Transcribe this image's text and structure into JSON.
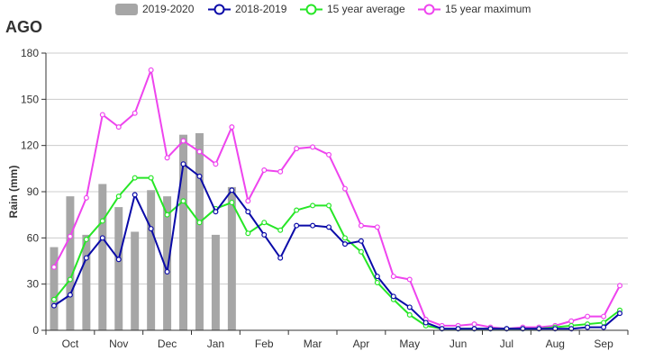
{
  "title": "AGO",
  "legend": [
    "2019-2020",
    "2018-2019",
    "15 year average",
    "15 year maximum"
  ],
  "colors": {
    "bars": "#a6a6a6",
    "s2018": "#0a0aa8",
    "avg": "#26e626",
    "max": "#ee44ee",
    "axis": "#333333",
    "grid": "#cccccc"
  },
  "chart_data": {
    "type": "bar+line",
    "title": "AGO",
    "ylabel": "Rain (mm)",
    "xlabel": "",
    "ylim": [
      0,
      180
    ],
    "yticks": [
      0,
      30,
      60,
      90,
      120,
      150,
      180
    ],
    "grid": "horizontal",
    "legend_position": "top",
    "month_labels": [
      "Oct",
      "Nov",
      "Dec",
      "Jan",
      "Feb",
      "Mar",
      "Apr",
      "May",
      "Jun",
      "Jul",
      "Aug",
      "Sep"
    ],
    "dekads_per_month": 3,
    "bars": {
      "name": "2019-2020",
      "values": [
        54,
        87,
        62,
        95,
        80,
        64,
        91,
        87,
        127,
        128,
        62,
        93
      ]
    },
    "series": [
      {
        "name": "2018-2019",
        "values": [
          16,
          23,
          47,
          60,
          46,
          88,
          66,
          38,
          108,
          100,
          77,
          91,
          77,
          62,
          47,
          68,
          68,
          67,
          56,
          58,
          35,
          22,
          15,
          5,
          1,
          1,
          1,
          1,
          1,
          1,
          1,
          1,
          1,
          2,
          2,
          11
        ]
      },
      {
        "name": "15 year average",
        "values": [
          20,
          33,
          59,
          71,
          87,
          99,
          99,
          75,
          84,
          70,
          79,
          83,
          63,
          70,
          65,
          78,
          81,
          81,
          60,
          51,
          31,
          20,
          10,
          3,
          1,
          1,
          1,
          1,
          1,
          1,
          1,
          2,
          3,
          4,
          5,
          13
        ]
      },
      {
        "name": "15 year maximum",
        "values": [
          41,
          61,
          86,
          140,
          132,
          141,
          169,
          112,
          123,
          116,
          108,
          132,
          84,
          104,
          103,
          118,
          119,
          114,
          92,
          68,
          67,
          35,
          33,
          7,
          3,
          3,
          4,
          2,
          1,
          2,
          2,
          3,
          6,
          9,
          9,
          29
        ]
      }
    ]
  }
}
